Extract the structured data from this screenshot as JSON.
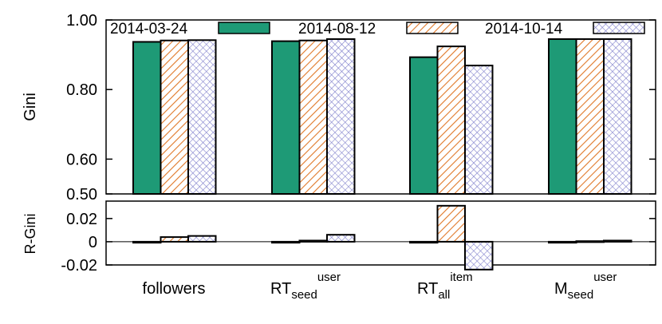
{
  "chart_data": [
    {
      "type": "bar",
      "ylabel": "Gini",
      "ylim": [
        0.5,
        1.0
      ],
      "yticks": [
        "0.50",
        "0.60",
        "0.80",
        "1.00"
      ],
      "ytick_values": [
        0.5,
        0.6,
        0.8,
        1.0
      ],
      "categories": [
        {
          "base": "followers",
          "sub": "",
          "sup": ""
        },
        {
          "base": "RT",
          "sub": "seed",
          "sup": "user"
        },
        {
          "base": "RT",
          "sub": "all",
          "sup": "item"
        },
        {
          "base": "M",
          "sub": "seed",
          "sup": "user"
        }
      ],
      "series": [
        {
          "name": "2014-03-24",
          "values": [
            0.937,
            0.939,
            0.893,
            0.945
          ]
        },
        {
          "name": "2014-08-12",
          "values": [
            0.941,
            0.941,
            0.924,
            0.945
          ]
        },
        {
          "name": "2014-10-14",
          "values": [
            0.942,
            0.945,
            0.869,
            0.945
          ]
        }
      ],
      "legend_position": "top",
      "grid": false
    },
    {
      "type": "bar",
      "ylabel": "R-Gini",
      "ylim": [
        -0.02,
        0.035
      ],
      "yticks": [
        "0.02",
        "0",
        "-0.02"
      ],
      "ytick_values": [
        0.02,
        0,
        -0.02
      ],
      "zero_line": true,
      "series": [
        {
          "name": "2014-03-24",
          "values": [
            0,
            0,
            0,
            0
          ]
        },
        {
          "name": "2014-08-12",
          "values": [
            0.004,
            0.001,
            0.031,
            0.0005
          ]
        },
        {
          "name": "2014-10-14",
          "values": [
            0.005,
            0.006,
            -0.024,
            0.001
          ]
        }
      ]
    }
  ],
  "colors": {
    "series1_fill": "#1e9a76",
    "series2_hatch": "#e07828",
    "series3_hatch": "#8080cc",
    "axis": "#000000"
  }
}
